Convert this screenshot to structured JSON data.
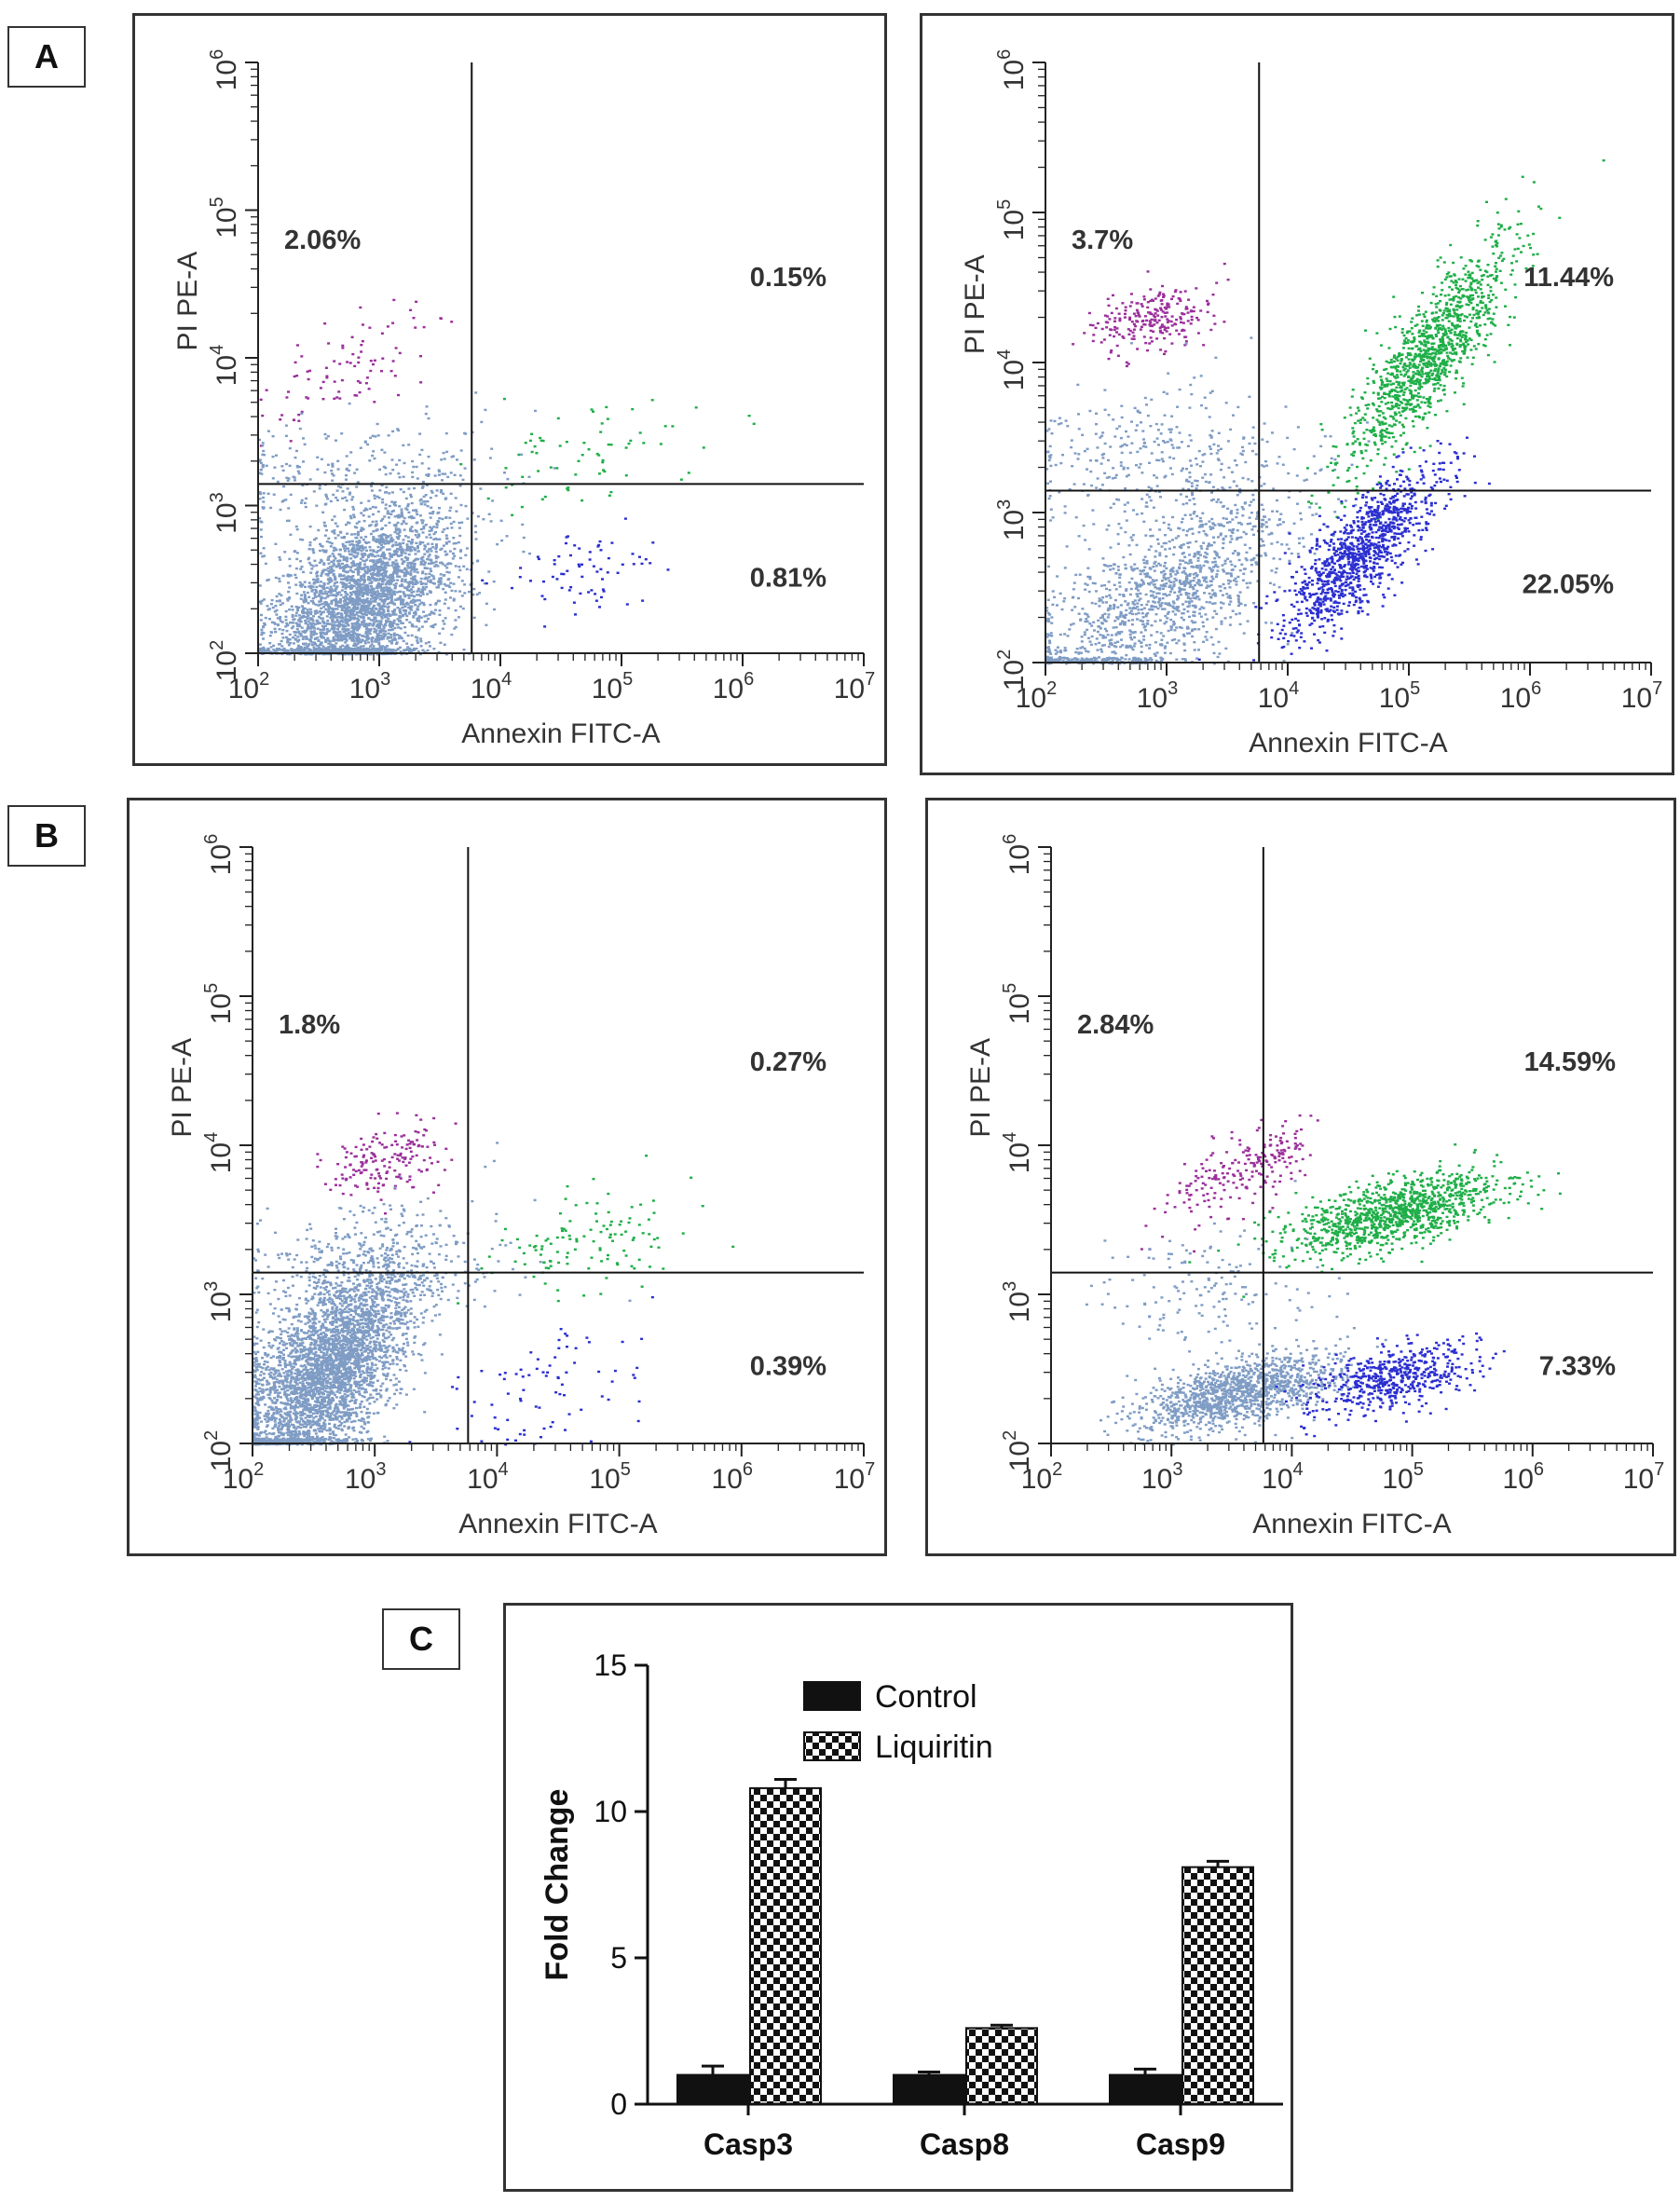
{
  "panels": {
    "a": "A",
    "b": "B",
    "c": "C"
  },
  "colors": {
    "live": "#7f9cc4",
    "early": "#2b2fd0",
    "late": "#1fae48",
    "necrotic": "#9b2f9b",
    "axis": "#222222"
  },
  "chart_data": [
    {
      "type": "scatter",
      "id": "A-left",
      "panel": "A",
      "position": "left",
      "xlabel": "Annexin FITC-A",
      "ylabel": "PI PE-A",
      "x_scale": "log10",
      "y_scale": "log10",
      "xlim": [
        100,
        10000000
      ],
      "ylim": [
        100,
        1000000
      ],
      "x_ticks": [
        "2",
        "3",
        "4",
        "5",
        "6",
        "7"
      ],
      "y_ticks": [
        "2",
        "3",
        "4",
        "5",
        "6"
      ],
      "gate": {
        "x": 5800,
        "y": 1400
      },
      "quadrants": {
        "upper_left": "2.06%",
        "upper_right": "0.15%",
        "lower_right": "0.81%"
      }
    },
    {
      "type": "scatter",
      "id": "A-right",
      "panel": "A",
      "position": "right",
      "xlabel": "Annexin FITC-A",
      "ylabel": "PI PE-A",
      "x_scale": "log10",
      "y_scale": "log10",
      "xlim": [
        100,
        10000000
      ],
      "ylim": [
        100,
        1000000
      ],
      "x_ticks": [
        "2",
        "3",
        "4",
        "5",
        "6",
        "7"
      ],
      "y_ticks": [
        "2",
        "3",
        "4",
        "5",
        "6"
      ],
      "gate": {
        "x": 5800,
        "y": 1400
      },
      "quadrants": {
        "upper_left": "3.7%",
        "upper_right": "11.44%",
        "lower_right": "22.05%"
      }
    },
    {
      "type": "scatter",
      "id": "B-left",
      "panel": "B",
      "position": "left",
      "xlabel": "Annexin FITC-A",
      "ylabel": "PI PE-A",
      "x_scale": "log10",
      "y_scale": "log10",
      "xlim": [
        100,
        10000000
      ],
      "ylim": [
        100,
        1000000
      ],
      "x_ticks": [
        "2",
        "3",
        "4",
        "5",
        "6",
        "7"
      ],
      "y_ticks": [
        "2",
        "3",
        "4",
        "5",
        "6"
      ],
      "gate": {
        "x": 5800,
        "y": 1400
      },
      "quadrants": {
        "upper_left": "1.8%",
        "upper_right": "0.27%",
        "lower_right": "0.39%"
      }
    },
    {
      "type": "scatter",
      "id": "B-right",
      "panel": "B",
      "position": "right",
      "xlabel": "Annexin FITC-A",
      "ylabel": "PI PE-A",
      "x_scale": "log10",
      "y_scale": "log10",
      "xlim": [
        100,
        10000000
      ],
      "ylim": [
        100,
        1000000
      ],
      "x_ticks": [
        "2",
        "3",
        "4",
        "5",
        "6",
        "7"
      ],
      "y_ticks": [
        "2",
        "3",
        "4",
        "5",
        "6"
      ],
      "gate": {
        "x": 5800,
        "y": 1400
      },
      "quadrants": {
        "upper_left": "2.84%",
        "upper_right": "14.59%",
        "lower_right": "7.33%"
      }
    },
    {
      "type": "bar",
      "id": "C",
      "panel": "C",
      "categories": [
        "Casp3",
        "Casp8",
        "Casp9"
      ],
      "series": [
        {
          "name": "Control",
          "values": [
            1.0,
            1.0,
            1.0
          ],
          "errors": [
            0.3,
            0.1,
            0.2
          ],
          "fill": "solid"
        },
        {
          "name": "Liquiritin",
          "values": [
            10.8,
            2.6,
            8.1
          ],
          "errors": [
            0.3,
            0.1,
            0.2
          ],
          "fill": "checker"
        }
      ],
      "title": "",
      "xlabel": "",
      "ylabel": "Fold Change",
      "ylim": [
        0,
        15
      ],
      "y_ticks": [
        "0",
        "5",
        "10",
        "15"
      ],
      "legend_position": "top-right"
    }
  ]
}
